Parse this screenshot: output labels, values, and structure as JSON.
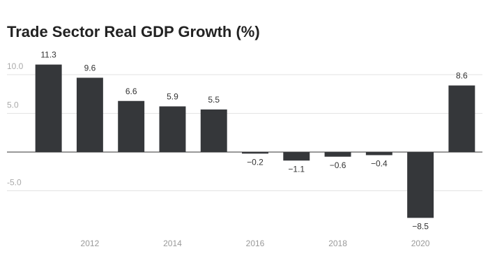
{
  "chart_data": {
    "type": "bar",
    "title": "Trade Sector Real GDP Growth (%)",
    "categories": [
      null,
      "2012",
      null,
      "2014",
      null,
      "2016",
      null,
      "2018",
      null,
      "2020",
      null
    ],
    "values": [
      11.3,
      9.6,
      6.6,
      5.9,
      5.5,
      -0.2,
      -1.1,
      -0.6,
      -0.4,
      -8.5,
      8.6
    ],
    "value_labels": [
      "11.3",
      "9.6",
      "6.6",
      "5.9",
      "5.5",
      "−0.2",
      "−1.1",
      "−0.6",
      "−0.4",
      "−8.5",
      "8.6"
    ],
    "color": "#35373a",
    "ylim": [
      -10,
      12.5
    ],
    "yticks": [
      {
        "value": -5,
        "label": "-5.0"
      },
      {
        "value": 5,
        "label": "5.0"
      },
      {
        "value": 10,
        "label": "10.0"
      }
    ],
    "grid": true
  }
}
